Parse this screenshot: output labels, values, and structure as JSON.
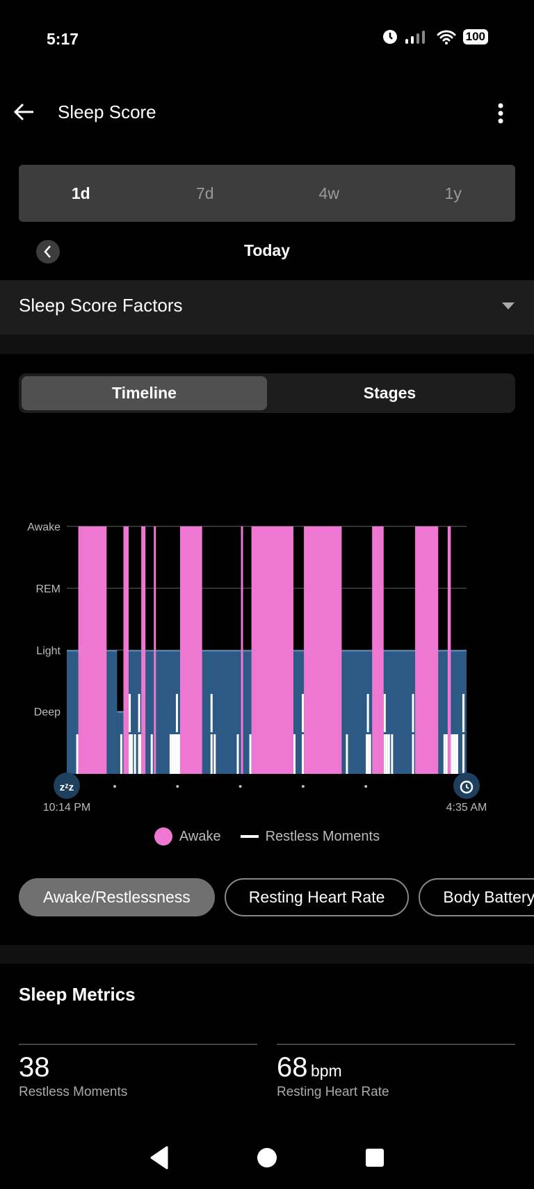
{
  "status": {
    "time": "5:17",
    "battery": "100"
  },
  "header": {
    "title": "Sleep Score"
  },
  "range_tabs": [
    {
      "label": "1d",
      "active": true
    },
    {
      "label": "7d"
    },
    {
      "label": "4w"
    },
    {
      "label": "1y"
    }
  ],
  "date_label": "Today",
  "factors_label": "Sleep Score Factors",
  "view_tabs": [
    {
      "label": "Timeline",
      "active": true
    },
    {
      "label": "Stages"
    }
  ],
  "chart_data": {
    "type": "timeline",
    "y_levels": [
      "Deep",
      "Light",
      "REM",
      "Awake"
    ],
    "start": "10:14 PM",
    "end": "4:35 AM",
    "colors": {
      "awake": "#ee77d2",
      "sleep": "#2c5a84",
      "restless": "#ffffff"
    },
    "stages": [
      {
        "stage": "Light",
        "start": "10:14 PM",
        "end": "11:02 PM"
      },
      {
        "stage": "Deep",
        "start": "11:02 PM",
        "end": "11:08 PM"
      },
      {
        "stage": "Light",
        "start": "11:08 PM",
        "end": "4:35 AM"
      }
    ],
    "awake": [
      {
        "start": "10:25 PM",
        "end": "10:52 PM"
      },
      {
        "start": "11:08 PM",
        "end": "11:13 PM"
      },
      {
        "start": "11:25 PM",
        "end": "11:29 PM"
      },
      {
        "start": "11:37 PM",
        "end": "11:39 PM"
      },
      {
        "start": "12:02 AM",
        "end": "12:23 AM"
      },
      {
        "start": "1:00 AM",
        "end": "1:02 AM"
      },
      {
        "start": "1:10 AM",
        "end": "1:50 AM"
      },
      {
        "start": "2:00 AM",
        "end": "2:36 AM"
      },
      {
        "start": "3:05 AM",
        "end": "3:16 AM"
      },
      {
        "start": "3:46 AM",
        "end": "4:08 AM"
      },
      {
        "start": "4:17 AM",
        "end": "4:20 AM"
      }
    ],
    "restless": [
      "10:24 PM",
      "11:06 PM",
      "11:11 PM",
      "11:14 PM",
      "11:16 PM",
      "11:19 PM",
      "11:23 PM",
      "11:24 PM",
      "11:35 PM",
      "11:53 PM",
      "11:55 PM",
      "11:57 PM",
      "11:59 PM",
      "12:01 AM",
      "12:03 AM",
      "12:32 AM",
      "12:35 AM",
      "12:57 AM",
      "1:09 AM",
      "1:51 AM",
      "1:59 AM",
      "2:41 AM",
      "3:00 AM",
      "3:01 AM",
      "3:03 AM",
      "3:17 AM",
      "3:19 AM",
      "3:21 AM",
      "3:24 AM",
      "3:44 AM",
      "4:14 AM",
      "4:16 AM",
      "4:18 AM",
      "4:20 AM",
      "4:22 AM",
      "4:24 AM",
      "4:26 AM",
      "4:32 AM"
    ],
    "restless_strong": [
      "11:14 PM",
      "11:23 PM",
      "11:59 PM",
      "12:32 AM",
      "1:59 AM",
      "3:01 AM",
      "3:17 AM",
      "3:44 AM",
      "4:32 AM"
    ],
    "legend": [
      {
        "label": "Awake"
      },
      {
        "label": "Restless Moments"
      }
    ],
    "legend_placement": "bottom",
    "grid": true
  },
  "chips": [
    {
      "label": "Awake/Restlessness",
      "active": true
    },
    {
      "label": "Resting Heart Rate"
    },
    {
      "label": "Body Battery"
    }
  ],
  "metrics": {
    "title": "Sleep Metrics",
    "items": [
      {
        "value": "38",
        "unit": "",
        "label": "Restless Moments"
      },
      {
        "value": "68",
        "unit": "bpm",
        "label": "Resting Heart Rate"
      }
    ]
  }
}
